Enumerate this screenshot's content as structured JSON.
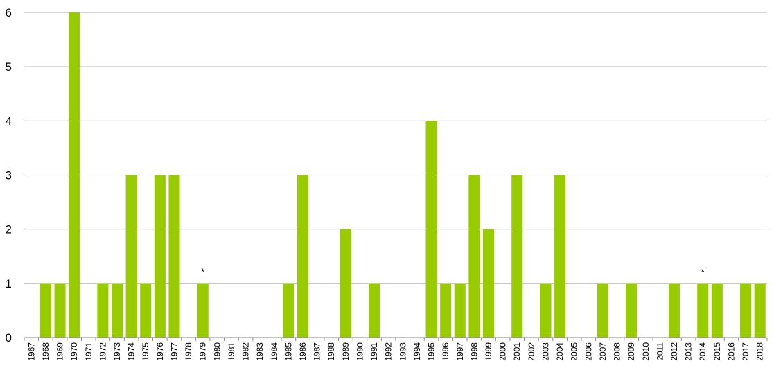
{
  "chart_data": {
    "type": "bar",
    "title": "",
    "xlabel": "",
    "ylabel": "",
    "ylim": [
      0,
      6
    ],
    "yticks": [
      0,
      1,
      2,
      3,
      4,
      5,
      6
    ],
    "grid": true,
    "legend": "none",
    "bar_color": "#99cc00",
    "grid_color": "#a6a6a6",
    "categories": [
      "1967",
      "1968",
      "1969",
      "1970",
      "1971",
      "1972",
      "1973",
      "1974",
      "1975",
      "1976",
      "1977",
      "1978",
      "1979",
      "1980",
      "1981",
      "1982",
      "1983",
      "1984",
      "1985",
      "1986",
      "1987",
      "1988",
      "1989",
      "1990",
      "1991",
      "1992",
      "1993",
      "1994",
      "1995",
      "1996",
      "1997",
      "1998",
      "1999",
      "2000",
      "2001",
      "2002",
      "2003",
      "2004",
      "2005",
      "2006",
      "2007",
      "2008",
      "2009",
      "2010",
      "2011",
      "2012",
      "2013",
      "2014",
      "2015",
      "2016",
      "2017",
      "2018"
    ],
    "values": [
      0,
      1,
      1,
      6,
      0,
      1,
      1,
      3,
      1,
      3,
      3,
      0,
      1,
      0,
      0,
      0,
      0,
      0,
      1,
      3,
      0,
      0,
      2,
      0,
      1,
      0,
      0,
      0,
      4,
      1,
      1,
      3,
      2,
      0,
      3,
      0,
      1,
      3,
      0,
      0,
      1,
      0,
      1,
      0,
      0,
      1,
      0,
      1,
      1,
      0,
      1,
      1
    ],
    "annotations": [
      {
        "category": "1979",
        "text": "*"
      },
      {
        "category": "2014",
        "text": "*"
      }
    ]
  }
}
